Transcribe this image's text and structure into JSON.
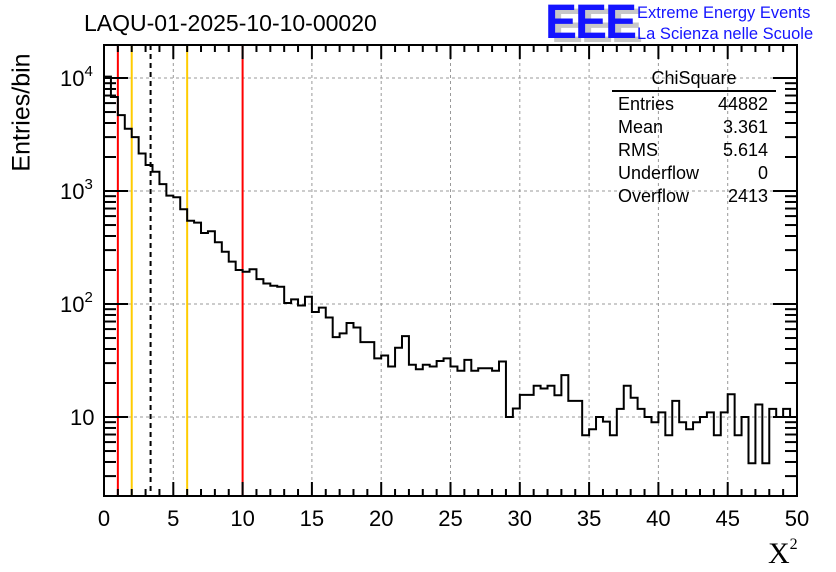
{
  "title": "LAQU-01-2025-10-10-00020",
  "logo": {
    "mark": "EEE",
    "line1": "Extreme Energy Events",
    "line2": "La Scienza nelle Scuole"
  },
  "stats": {
    "name": "ChiSquare",
    "rows": [
      {
        "label": "Entries",
        "value": "44882"
      },
      {
        "label": "Mean",
        "value": "3.361"
      },
      {
        "label": "RMS",
        "value": "5.614"
      },
      {
        "label": "Underflow",
        "value": "0"
      },
      {
        "label": "Overflow",
        "value": "2413"
      }
    ]
  },
  "colors": {
    "hist": "#000000",
    "red": "#ff0000",
    "yellow": "#ffcc00",
    "grid": "#999999",
    "logo": "#1414ff"
  },
  "chart_data": {
    "type": "histogram",
    "title": "LAQU-01-2025-10-10-00020",
    "xlabel": "χ²",
    "xlabel_base": "X",
    "xlabel_sup": "2",
    "ylabel": "Entries/bin",
    "xlim": [
      0,
      50
    ],
    "ylim": [
      2,
      19600
    ],
    "yscale": "log",
    "grid": true,
    "bin_width": 0.5,
    "x_ticks": [
      "0",
      "5",
      "10",
      "15",
      "20",
      "25",
      "30",
      "35",
      "40",
      "45",
      "50"
    ],
    "y_ticks": [
      {
        "base": "10",
        "exp": "4",
        "value": 10000
      },
      {
        "base": "10",
        "exp": "3",
        "value": 1000
      },
      {
        "base": "10",
        "exp": "2",
        "value": 100
      },
      {
        "base": "10",
        "exp": "",
        "value": 10
      }
    ],
    "values": [
      10300,
      6800,
      4700,
      3560,
      3000,
      2150,
      1700,
      1480,
      1150,
      910,
      880,
      690,
      545,
      525,
      425,
      440,
      352,
      290,
      237,
      200,
      193,
      203,
      166,
      152,
      145,
      142,
      102,
      110,
      97,
      116,
      85,
      93,
      76,
      51,
      55,
      68,
      62,
      46,
      46,
      33,
      35,
      28,
      41,
      52,
      29,
      26.5,
      29,
      28,
      31.3,
      33,
      28,
      25.7,
      32,
      25.7,
      27,
      27,
      25.7,
      31,
      10,
      11.9,
      15.7,
      15.7,
      18.9,
      17.9,
      18.9,
      15.6,
      23.5,
      13.9,
      13.9,
      6.9,
      7.8,
      10,
      9.1,
      6.9,
      11.8,
      18.9,
      14.8,
      11.8,
      10,
      9,
      11,
      6.9,
      13.9,
      9,
      7.8,
      9,
      10,
      11,
      6.9,
      11,
      15.9,
      6.9,
      10,
      3.9,
      12.9,
      3.9,
      11.8,
      10,
      11.8,
      10
    ],
    "vertical_lines": [
      {
        "x": 1,
        "color": "red",
        "style": "solid"
      },
      {
        "x": 2,
        "color": "yellow",
        "style": "solid"
      },
      {
        "x": 3.361,
        "color": "black",
        "style": "dashed"
      },
      {
        "x": 6,
        "color": "yellow",
        "style": "solid"
      },
      {
        "x": 10,
        "color": "red",
        "style": "solid"
      }
    ]
  }
}
